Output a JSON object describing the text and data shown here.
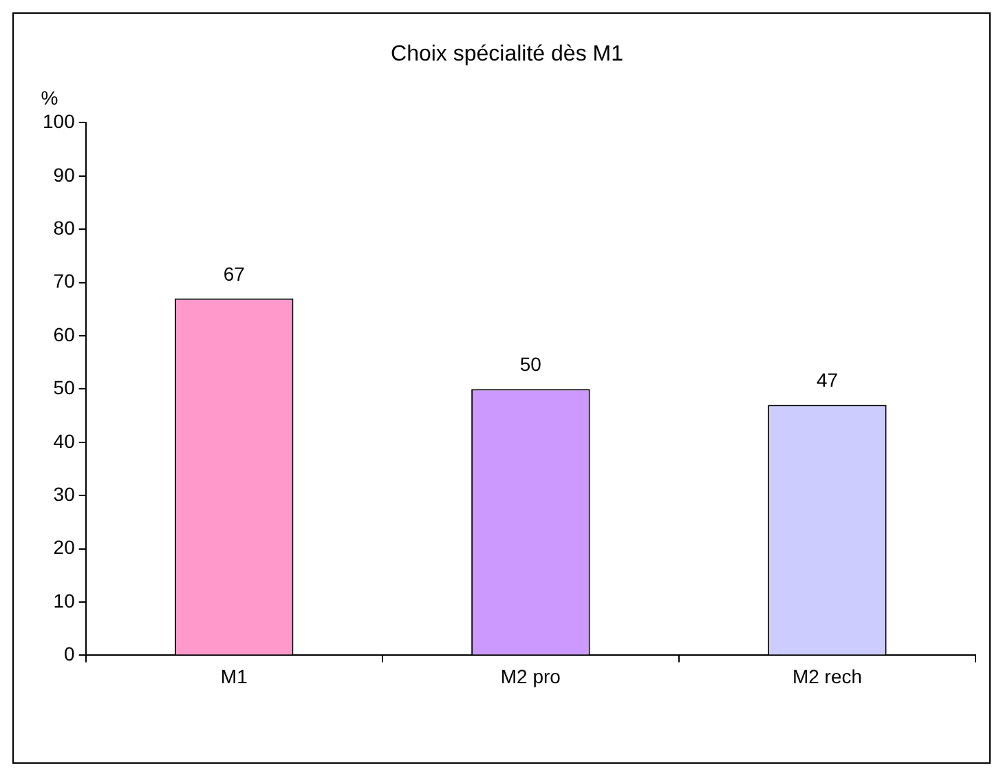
{
  "chart_data": {
    "type": "bar",
    "title": "Choix spécialité dès M1",
    "ylabel": "%",
    "categories": [
      "M1",
      "M2 pro",
      "M2 rech"
    ],
    "values": [
      67,
      50,
      47
    ],
    "colors": [
      "#ff99cc",
      "#cc99ff",
      "#ccccff"
    ],
    "ylim": [
      0,
      100
    ],
    "yticks": [
      0,
      10,
      20,
      30,
      40,
      50,
      60,
      70,
      80,
      90,
      100
    ],
    "grid": false,
    "legend": false,
    "data_labels": true
  }
}
